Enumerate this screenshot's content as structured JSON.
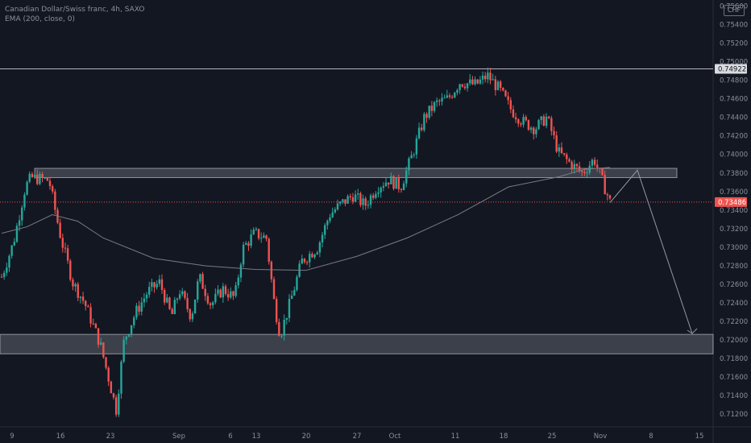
{
  "header": {
    "symbol_line": "Canadian Dollar/Swiss franc, 4h, SAXO",
    "indicator_line": "EMA (200, close, 0)",
    "currency_badge": "CHF"
  },
  "price_axis": {
    "labels": [
      "0.75600",
      "0.75400",
      "0.75200",
      "0.75000",
      "0.74800",
      "0.74600",
      "0.74400",
      "0.74200",
      "0.74000",
      "0.73800",
      "0.73600",
      "0.73400",
      "0.73200",
      "0.73000",
      "0.72800",
      "0.72600",
      "0.72400",
      "0.72200",
      "0.72000",
      "0.71800",
      "0.71600",
      "0.71400",
      "0.71200"
    ],
    "price_tags": [
      {
        "label": "0.74922",
        "price": 0.74922,
        "background": "#d9dbe0",
        "color": "#131722"
      },
      {
        "label": "0.73486",
        "price": 0.73486,
        "background": "#ef5350",
        "color": "#ffffff"
      }
    ]
  },
  "time_axis": {
    "labels": [
      "9",
      "16",
      "23",
      "Sep",
      "6",
      "13",
      "20",
      "27",
      "Oct",
      "11",
      "18",
      "25",
      "Nov",
      "8",
      "15"
    ]
  },
  "colors": {
    "background": "#131722",
    "up_candle": "#26a69a",
    "down_candle": "#ef5350",
    "ema_line": "#787b86",
    "zone_fill": "#d1d4dc",
    "resistance_line": "#b2b5be",
    "current_price_line": "#ef5350",
    "projection_arrow": "#9598a1"
  },
  "chart_data": {
    "type": "candlestick",
    "title": "Canadian Dollar/Swiss franc, 4h, SAXO",
    "ylim": [
      0.7108,
      0.7563
    ],
    "x_categories": [
      "9",
      "16",
      "23",
      "Sep",
      "6",
      "13",
      "20",
      "27",
      "Oct",
      "11",
      "18",
      "25",
      "Nov",
      "8",
      "15"
    ],
    "series": [
      {
        "name": "EMA (200, close, 0)",
        "type": "line",
        "points": [
          [
            0,
            0.7315
          ],
          [
            0.5,
            0.7322
          ],
          [
            1,
            0.7335
          ],
          [
            1.5,
            0.7328
          ],
          [
            2,
            0.731
          ],
          [
            3,
            0.7288
          ],
          [
            4,
            0.728
          ],
          [
            5,
            0.7276
          ],
          [
            6,
            0.7275
          ],
          [
            7,
            0.729
          ],
          [
            8,
            0.731
          ],
          [
            9,
            0.7335
          ],
          [
            10,
            0.7365
          ],
          [
            11,
            0.7376
          ],
          [
            11.5,
            0.7384
          ],
          [
            12,
            0.7386
          ]
        ]
      }
    ],
    "horizontal_levels": [
      {
        "type": "line",
        "price": 0.74922
      },
      {
        "type": "zone",
        "price_from": 0.7375,
        "price_to": 0.7385
      },
      {
        "type": "zone",
        "price_from": 0.7185,
        "price_to": 0.7206
      }
    ],
    "current_price": 0.73486,
    "projection_path": [
      [
        12,
        0.7348
      ],
      [
        12.7,
        0.7383
      ],
      [
        14.6,
        0.7207
      ]
    ],
    "price_path": [
      [
        0,
        0.7268
      ],
      [
        0.3,
        0.7305
      ],
      [
        0.6,
        0.7365
      ],
      [
        0.75,
        0.7375
      ],
      [
        1.2,
        0.7372
      ],
      [
        1.5,
        0.731
      ],
      [
        1.8,
        0.7262
      ],
      [
        2.1,
        0.724
      ],
      [
        2.5,
        0.7195
      ],
      [
        2.9,
        0.7125
      ],
      [
        3.1,
        0.72
      ],
      [
        3.4,
        0.723
      ],
      [
        3.7,
        0.7252
      ],
      [
        4,
        0.7262
      ],
      [
        4.3,
        0.7225
      ],
      [
        4.5,
        0.7254
      ],
      [
        4.8,
        0.7225
      ],
      [
        5,
        0.7268
      ],
      [
        5.3,
        0.7238
      ],
      [
        5.6,
        0.7255
      ],
      [
        5.9,
        0.7245
      ],
      [
        6.1,
        0.7298
      ],
      [
        6.4,
        0.7315
      ],
      [
        6.7,
        0.731
      ],
      [
        6.9,
        0.724
      ],
      [
        7.05,
        0.7205
      ],
      [
        7.3,
        0.724
      ],
      [
        7.6,
        0.7285
      ],
      [
        8.0,
        0.73
      ],
      [
        8.3,
        0.7335
      ],
      [
        8.6,
        0.7347
      ],
      [
        8.9,
        0.7356
      ],
      [
        9.2,
        0.7345
      ],
      [
        9.5,
        0.7365
      ],
      [
        9.8,
        0.7373
      ],
      [
        10.1,
        0.7365
      ],
      [
        10.4,
        0.74
      ],
      [
        10.7,
        0.744
      ],
      [
        11.0,
        0.7455
      ],
      [
        11.3,
        0.746
      ],
      [
        11.6,
        0.7478
      ],
      [
        12.0,
        0.7475
      ],
      [
        12.3,
        0.7485
      ],
      [
        12.6,
        0.747
      ],
      [
        12.9,
        0.7448
      ],
      [
        13.2,
        0.7435
      ],
      [
        13.5,
        0.7428
      ],
      [
        13.8,
        0.744
      ],
      [
        14.1,
        0.7402
      ],
      [
        14.4,
        0.739
      ],
      [
        14.7,
        0.738
      ],
      [
        15.0,
        0.7395
      ],
      [
        15.2,
        0.7372
      ],
      [
        15.4,
        0.7349
      ]
    ]
  }
}
